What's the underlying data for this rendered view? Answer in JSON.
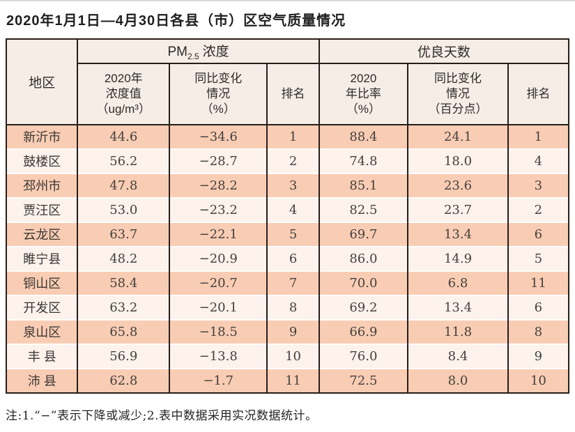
{
  "page": {
    "title": "2020年1月1日—4月30日各县（市）区空气质量情况",
    "note": "注:1.“−”表示下降或减少;2.表中数据采用实况数据统计。"
  },
  "table": {
    "header": {
      "region_label": "地区",
      "pm_group": {
        "prefix": "PM",
        "sub": "2.5",
        "suffix": "浓度"
      },
      "good_group_label": "优良天数",
      "pm_value_label": "2020年\n浓度值\n（ug/m³）",
      "pm_change_label": "同比变化\n情况\n（%）",
      "pm_rank_label": "排名",
      "good_rate_label": "2020\n年比率\n（%）",
      "good_change_label": "同比变化\n情况\n（百分点）",
      "good_rank_label": "排名"
    },
    "rows": [
      {
        "region": "新沂市",
        "pm_value": "44.6",
        "pm_change": "−34.6",
        "pm_rank": "1",
        "good_rate": "88.4",
        "good_change": "24.1",
        "good_rank": "1"
      },
      {
        "region": "鼓楼区",
        "pm_value": "56.2",
        "pm_change": "−28.7",
        "pm_rank": "2",
        "good_rate": "74.8",
        "good_change": "18.0",
        "good_rank": "4"
      },
      {
        "region": "邳州市",
        "pm_value": "47.8",
        "pm_change": "−28.2",
        "pm_rank": "3",
        "good_rate": "85.1",
        "good_change": "23.6",
        "good_rank": "3"
      },
      {
        "region": "贾汪区",
        "pm_value": "53.0",
        "pm_change": "−23.2",
        "pm_rank": "4",
        "good_rate": "82.5",
        "good_change": "23.7",
        "good_rank": "2"
      },
      {
        "region": "云龙区",
        "pm_value": "63.7",
        "pm_change": "−22.1",
        "pm_rank": "5",
        "good_rate": "69.7",
        "good_change": "13.4",
        "good_rank": "6"
      },
      {
        "region": "睢宁县",
        "pm_value": "48.2",
        "pm_change": "−20.9",
        "pm_rank": "6",
        "good_rate": "86.0",
        "good_change": "14.9",
        "good_rank": "5"
      },
      {
        "region": "铜山区",
        "pm_value": "58.4",
        "pm_change": "−20.7",
        "pm_rank": "7",
        "good_rate": "70.0",
        "good_change": "6.8",
        "good_rank": "11"
      },
      {
        "region": "开发区",
        "pm_value": "63.2",
        "pm_change": "−20.1",
        "pm_rank": "8",
        "good_rate": "69.2",
        "good_change": "13.4",
        "good_rank": "6"
      },
      {
        "region": "泉山区",
        "pm_value": "65.8",
        "pm_change": "−18.5",
        "pm_rank": "9",
        "good_rate": "66.9",
        "good_change": "11.8",
        "good_rank": "8"
      },
      {
        "region": "丰 县",
        "pm_value": "56.9",
        "pm_change": "−13.8",
        "pm_rank": "10",
        "good_rate": "76.0",
        "good_change": "8.4",
        "good_rank": "9"
      },
      {
        "region": "沛 县",
        "pm_value": "62.8",
        "pm_change": "−1.7",
        "pm_rank": "11",
        "good_rate": "72.5",
        "good_change": "8.0",
        "good_rank": "10"
      }
    ]
  },
  "colors": {
    "row_odd": "#f9cdb4",
    "row_even": "#fdf2ec",
    "header_bg": "#f7ede7",
    "border": "#261e1a"
  }
}
